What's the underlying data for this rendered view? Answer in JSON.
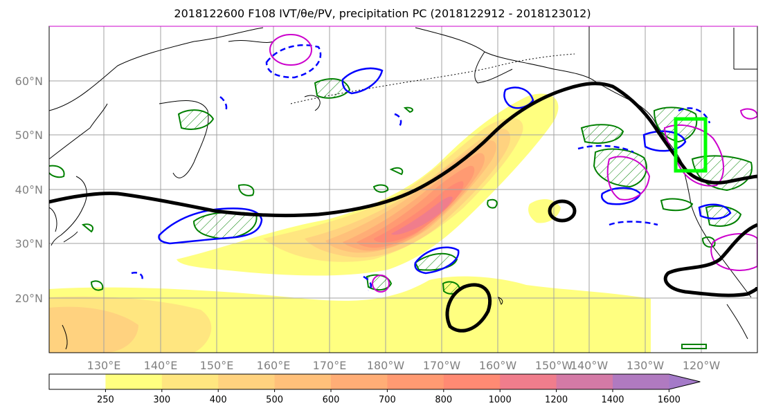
{
  "chart_data": {
    "type": "heatmap",
    "title": "2018122600 F108 IVT/θe/PV, precipitation PC (2018122912 - 2018123012)",
    "latitude_ticks": [
      "60°N",
      "50°N",
      "40°N",
      "30°N",
      "20°N"
    ],
    "longitude_ticks": [
      "130°E",
      "140°E",
      "150°E",
      "160°E",
      "170°E",
      "180°W",
      "170°W",
      "160°W",
      "150°W",
      "140°W",
      "130°W",
      "120°W"
    ],
    "grid": true,
    "colorbar": {
      "position": "bottom",
      "extend": "max",
      "levels": [
        250,
        300,
        400,
        500,
        600,
        700,
        800,
        1000,
        1200,
        1400,
        1600
      ],
      "colors": [
        "#ffffff",
        "#ffff80",
        "#ffe680",
        "#ffd27f",
        "#ffc07a",
        "#ffad76",
        "#ff9a72",
        "#ff8a73",
        "#f07d8c",
        "#d47aa6",
        "#b07ac0",
        "#a47ac8"
      ]
    },
    "overlays": {
      "theta_e_contour_color": "#000000",
      "pv_positive_color": "#cc00cc",
      "pv_negative_color": "#0000ff",
      "precipitation_hatch_color": "#008000",
      "highlight_box_color": "#00ff00"
    }
  }
}
